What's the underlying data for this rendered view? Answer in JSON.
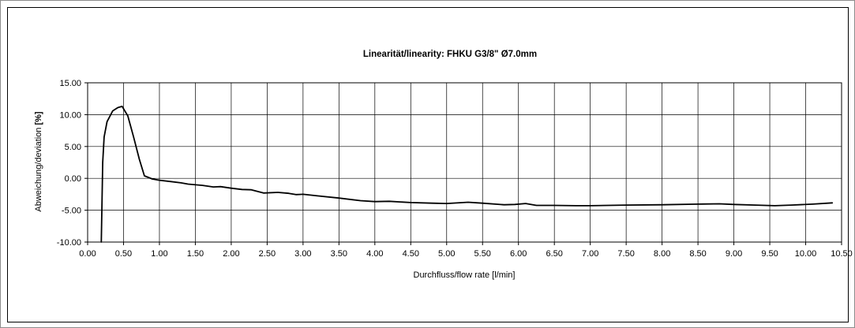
{
  "chart_data": {
    "type": "line",
    "title": "Linearität/linearity: FHKU G3/8\" Ø7.0mm",
    "xlabel": "Durchfluss/flow rate [l/min]",
    "ylabel_main": "Abweichung/deviation ",
    "ylabel_unit": "[%]",
    "xlim": [
      0,
      10.5
    ],
    "ylim": [
      -10,
      15
    ],
    "x_ticks": [
      "0.00",
      "0.50",
      "1.00",
      "1.50",
      "2.00",
      "2.50",
      "3.00",
      "3.50",
      "4.00",
      "4.50",
      "5.00",
      "5.50",
      "6.00",
      "6.50",
      "7.00",
      "7.50",
      "8.00",
      "8.50",
      "9.00",
      "9.50",
      "10.00",
      "10.50"
    ],
    "y_ticks": [
      "15.00",
      "10.00",
      "5.00",
      "0.00",
      "-5.00",
      "-10.00"
    ],
    "grid": true,
    "legend": "none",
    "line_color": "#000000",
    "series": [
      {
        "x": [
          0.19,
          0.21,
          0.23,
          0.27,
          0.35,
          0.42,
          0.48,
          0.56,
          0.64,
          0.72,
          0.79,
          0.9,
          1.0,
          1.15,
          1.3,
          1.4,
          1.6,
          1.75,
          1.85,
          2.0,
          2.15,
          2.28,
          2.45,
          2.65,
          2.8,
          2.9,
          3.0,
          3.2,
          3.5,
          3.8,
          4.0,
          4.2,
          4.5,
          4.8,
          5.0,
          5.3,
          5.5,
          5.8,
          5.95,
          6.1,
          6.25,
          6.5,
          6.8,
          7.0,
          7.5,
          8.0,
          8.5,
          8.8,
          9.0,
          9.3,
          9.57,
          9.8,
          10.1,
          10.37
        ],
        "y": [
          -10.0,
          2.5,
          6.5,
          8.9,
          10.6,
          11.1,
          11.3,
          9.8,
          6.5,
          3.0,
          0.4,
          -0.1,
          -0.3,
          -0.5,
          -0.7,
          -0.9,
          -1.1,
          -1.35,
          -1.3,
          -1.55,
          -1.75,
          -1.8,
          -2.3,
          -2.2,
          -2.35,
          -2.55,
          -2.5,
          -2.75,
          -3.1,
          -3.5,
          -3.65,
          -3.6,
          -3.8,
          -3.9,
          -3.95,
          -3.75,
          -3.9,
          -4.15,
          -4.1,
          -3.95,
          -4.25,
          -4.25,
          -4.3,
          -4.3,
          -4.2,
          -4.15,
          -4.05,
          -4.0,
          -4.1,
          -4.2,
          -4.3,
          -4.2,
          -4.05,
          -3.85
        ]
      }
    ]
  }
}
